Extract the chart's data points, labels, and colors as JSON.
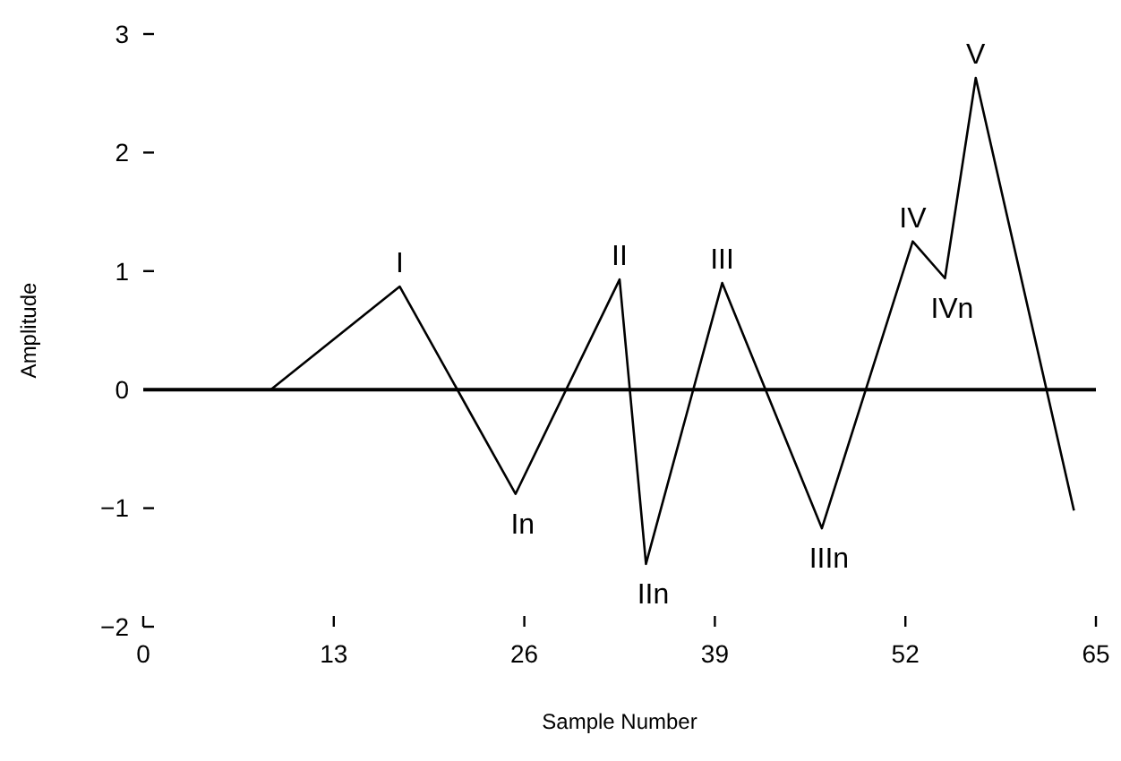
{
  "chart_data": {
    "type": "line",
    "xlabel": "Sample Number",
    "ylabel": "Amplitude",
    "x": [
      8.7,
      17.5,
      25.4,
      32.5,
      34.3,
      39.5,
      46.3,
      52.5,
      54.7,
      56.8,
      63.5
    ],
    "series": [
      {
        "color": "#000000",
        "values": [
          0,
          0.87,
          -0.88,
          0.93,
          -1.47,
          0.9,
          -1.17,
          1.25,
          0.94,
          2.63,
          -1.02
        ]
      }
    ],
    "xlim": [
      0,
      65
    ],
    "xticks": [
      0,
      13,
      26,
      39,
      52,
      65
    ],
    "ylim": [
      -2,
      3
    ],
    "yticks": [
      -2,
      -1,
      0,
      1,
      2,
      3
    ],
    "ref_lines": [
      {
        "axis": "y",
        "value": 0,
        "color": "#000000"
      }
    ],
    "annotations": [
      {
        "text": "I",
        "x": 17.5,
        "y": 0.87
      },
      {
        "text": "In",
        "x": 25.4,
        "y": -0.88
      },
      {
        "text": "II",
        "x": 32.5,
        "y": 0.93
      },
      {
        "text": "IIn",
        "x": 34.3,
        "y": -1.47
      },
      {
        "text": "III",
        "x": 39.5,
        "y": 0.9
      },
      {
        "text": "IIIn",
        "x": 46.3,
        "y": -1.17
      },
      {
        "text": "IV",
        "x": 52.5,
        "y": 1.25
      },
      {
        "text": "IVn",
        "x": 54.7,
        "y": 0.94
      },
      {
        "text": "V",
        "x": 56.8,
        "y": 2.63
      }
    ],
    "marker": "none",
    "line_style": "solid"
  }
}
